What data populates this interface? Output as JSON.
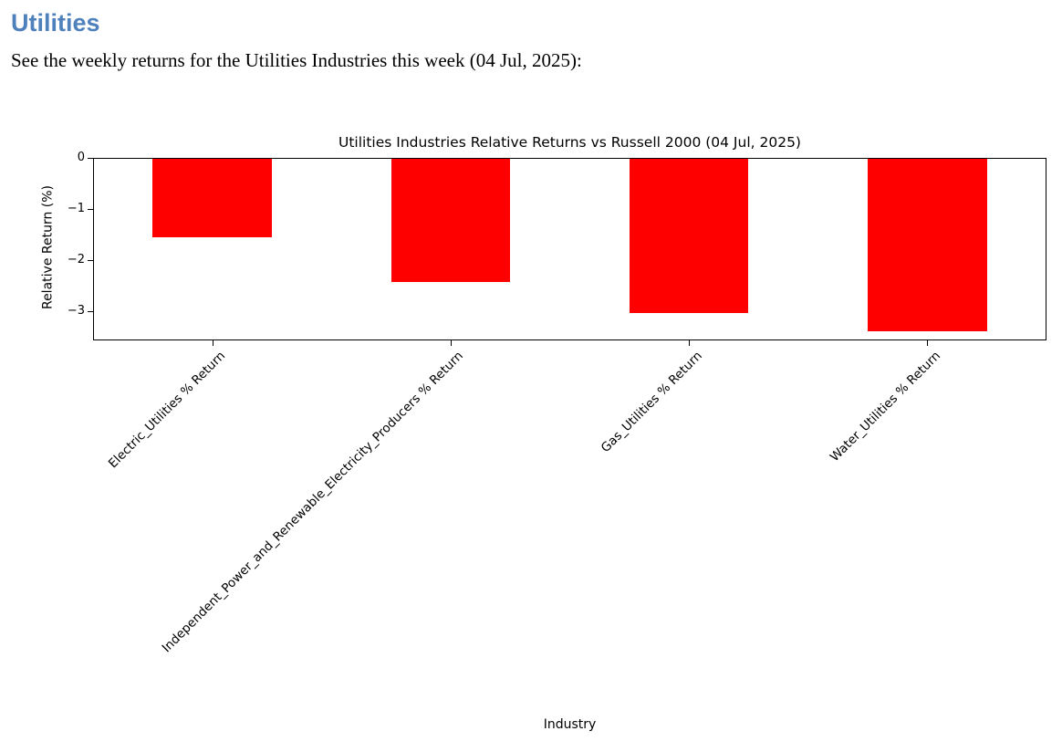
{
  "header": {
    "title": "Utilities",
    "subtitle": "See the weekly returns for the Utilities Industries this week (04 Jul, 2025):"
  },
  "colors": {
    "heading_blue": "#4f81bd",
    "bar_red": "#ff0000",
    "axis_color": "#000000"
  },
  "chart_data": {
    "type": "bar",
    "title": "Utilities Industries Relative Returns vs Russell 2000 (04 Jul, 2025)",
    "xlabel": "Industry",
    "ylabel": "Relative Return (%)",
    "categories": [
      "Electric_Utilities % Return",
      "Independent_Power_and_Renewable_Electricity_Producers % Return",
      "Gas_Utilities % Return",
      "Water_Utilities % Return"
    ],
    "values": [
      -1.55,
      -2.43,
      -3.03,
      -3.4
    ],
    "bar_color": "#ff0000",
    "bar_width_fraction": 0.5,
    "ylim": [
      -3.57,
      0
    ],
    "yticks": [
      {
        "value": 0,
        "label": "0"
      },
      {
        "value": -1,
        "label": "−1"
      },
      {
        "value": -2,
        "label": "−2"
      },
      {
        "value": -3,
        "label": "−3"
      }
    ],
    "grid": false,
    "legend": "none",
    "x_tick_label_rotation_deg": 45
  }
}
